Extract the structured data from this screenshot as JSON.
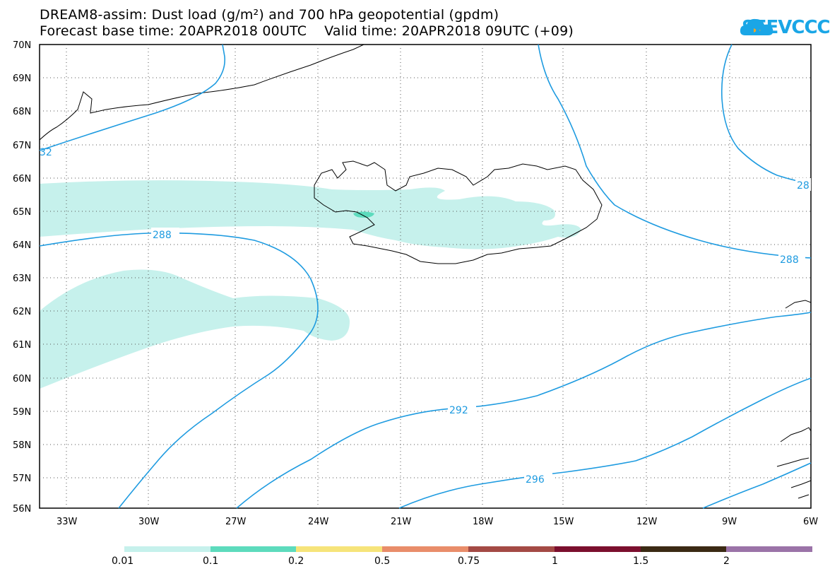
{
  "header": {
    "title_line1": "DREAM8-assim: Dust load (g/m²) and 700 hPa geopotential (gpdm)",
    "title_line2": "Forecast base time: 20APR2018 00UTC    Valid time: 20APR2018 09UTC (+09)"
  },
  "logo": {
    "text": "SEEVCCC",
    "icon": "cloud-icon",
    "color": "#1aa6e6"
  },
  "map": {
    "lat_labels": [
      "70N",
      "69N",
      "68N",
      "67N",
      "66N",
      "65N",
      "64N",
      "63N",
      "62N",
      "61N",
      "60N",
      "59N",
      "58N",
      "57N",
      "56N"
    ],
    "lon_labels": [
      "33W",
      "30W",
      "27W",
      "24W",
      "21W",
      "18W",
      "15W",
      "12W",
      "9W",
      "6W"
    ],
    "contour_labels": [
      "288",
      "288",
      "292",
      "296",
      "28",
      "32"
    ],
    "contour_color": "#1e9be0",
    "dust_color": "#c6f1ec",
    "dust_color_high": "#5ddbbd"
  },
  "colorbar": {
    "labels": [
      "0.01",
      "0.1",
      "0.2",
      "0.5",
      "0.75",
      "1",
      "1.5",
      "2"
    ],
    "colors": [
      "#c6f1ec",
      "#5ddbbd",
      "#f6e47a",
      "#e98d6a",
      "#a44a45",
      "#7b0f2e",
      "#3b2a14",
      "#9b73a8"
    ]
  }
}
